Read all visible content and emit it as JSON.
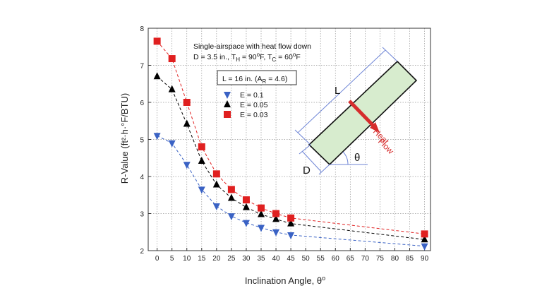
{
  "chart_data": {
    "type": "scatter",
    "xlabel": "Inclination Angle, θ",
    "xlabel_sup": "o",
    "ylabel": "R-Value (ft²·h·°F/BTU)",
    "xlim": [
      -3,
      92
    ],
    "ylim": [
      2,
      8
    ],
    "x_ticks": [
      0,
      5,
      10,
      15,
      20,
      25,
      30,
      35,
      40,
      45,
      50,
      55,
      60,
      65,
      70,
      75,
      80,
      85,
      90
    ],
    "y_ticks": [
      2,
      3,
      4,
      5,
      6,
      7,
      8
    ],
    "grid": true,
    "annotation": {
      "line1": "Single-airspace with heat flow down",
      "line2_a": "D = 3.5 in., T",
      "line2_sub1": "H",
      "line2_b": " = 90",
      "line2_sup1": "o",
      "line2_c": "F, T",
      "line2_sub2": "C",
      "line2_d": " = 60",
      "line2_sup2": "o",
      "line2_e": "F"
    },
    "length_box": {
      "text_a": "L = 16 in. (A",
      "text_sub": "R",
      "text_b": " = 4.6)"
    },
    "legend_position": "upper-middle",
    "series": [
      {
        "name": "E = 0.1",
        "marker": "triangle-down",
        "color": "#3a62c4",
        "x": [
          0,
          5,
          10,
          15,
          20,
          25,
          30,
          35,
          40,
          45,
          90
        ],
        "y": [
          5.1,
          4.9,
          4.32,
          3.65,
          3.2,
          2.93,
          2.75,
          2.62,
          2.5,
          2.42,
          2.12
        ]
      },
      {
        "name": "E = 0.05",
        "marker": "triangle-up",
        "color": "#000000",
        "x": [
          0,
          5,
          10,
          15,
          20,
          25,
          30,
          35,
          40,
          45,
          90
        ],
        "y": [
          6.7,
          6.35,
          5.42,
          4.42,
          3.78,
          3.42,
          3.17,
          2.98,
          2.85,
          2.73,
          2.3
        ]
      },
      {
        "name": "E = 0.03",
        "marker": "square",
        "color": "#e02020",
        "x": [
          0,
          5,
          10,
          15,
          20,
          25,
          30,
          35,
          40,
          45,
          90
        ],
        "y": [
          7.65,
          7.18,
          6.0,
          4.8,
          4.07,
          3.65,
          3.37,
          3.15,
          3.0,
          2.88,
          2.45
        ]
      }
    ],
    "diagram": {
      "length_label": "L",
      "thickness_label": "D",
      "angle_label": "θ",
      "heat_line1": "Heat",
      "heat_line2": "Flow",
      "panel_fill": "#d7ecce",
      "arrow_color": "#d62d2d",
      "dimension_color": "#6f86d6"
    }
  }
}
